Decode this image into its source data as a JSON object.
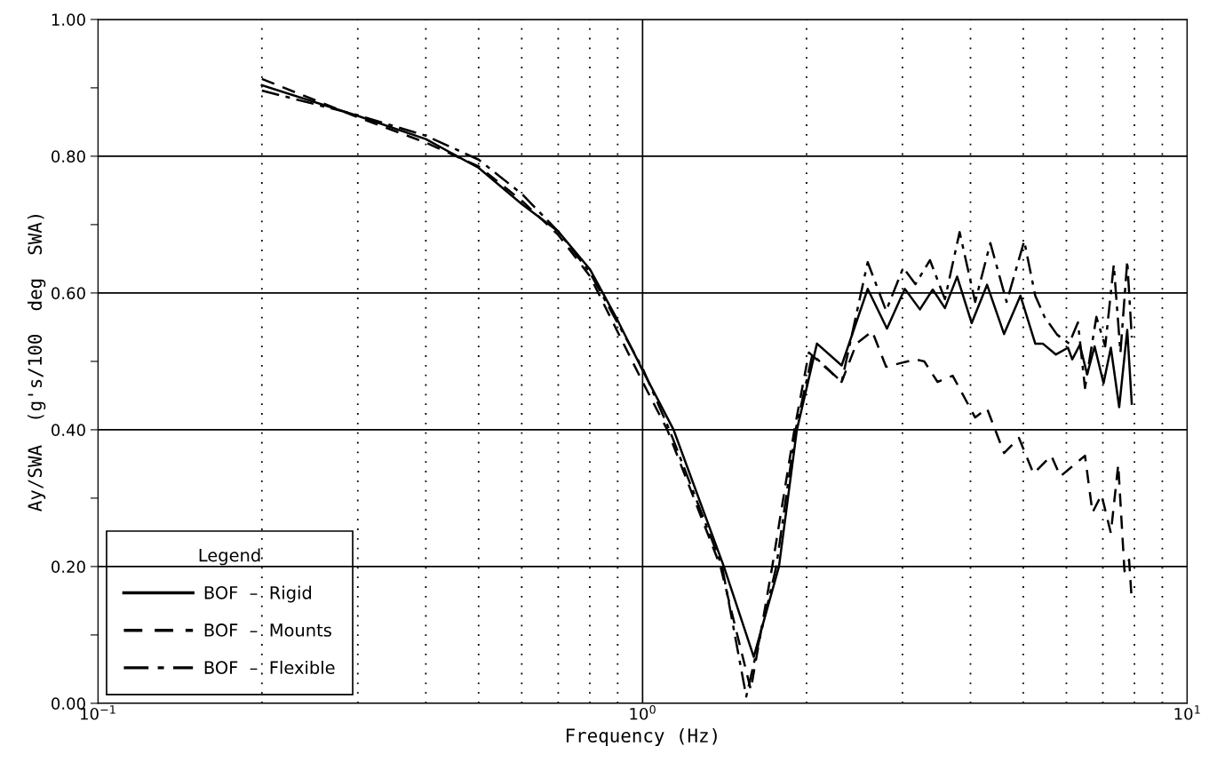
{
  "chart_data": {
    "type": "line",
    "xlabel": "Frequency (Hz)",
    "ylabel": "Ay/SWA  (g's/100  deg  SWA)",
    "log": "x",
    "grid": true,
    "legend": "bottom left",
    "legend_title": "Legend",
    "marker": "none",
    "xlim": [
      0.1,
      10
    ],
    "ylim": [
      0,
      1
    ],
    "xticks": [
      {
        "value": 0.1,
        "label": "10$^{−1}$"
      },
      {
        "value": 0.2,
        "label": null
      },
      {
        "value": 0.3,
        "label": null
      },
      {
        "value": 0.4,
        "label": null
      },
      {
        "value": 0.5,
        "label": null
      },
      {
        "value": 0.6,
        "label": null
      },
      {
        "value": 0.7,
        "label": null
      },
      {
        "value": 0.8,
        "label": null
      },
      {
        "value": 0.9,
        "label": null
      },
      {
        "value": 1,
        "label": "10$^{0}$"
      },
      {
        "value": 2,
        "label": null
      },
      {
        "value": 3,
        "label": null
      },
      {
        "value": 4,
        "label": null
      },
      {
        "value": 5,
        "label": null
      },
      {
        "value": 6,
        "label": null
      },
      {
        "value": 7,
        "label": null
      },
      {
        "value": 8,
        "label": null
      },
      {
        "value": 9,
        "label": null
      },
      {
        "value": 10,
        "label": "10$^{1}$"
      }
    ],
    "yticks": [
      {
        "value": 0,
        "label": "0.00"
      },
      {
        "value": 0.1,
        "label": null
      },
      {
        "value": 0.2,
        "label": "0.20"
      },
      {
        "value": 0.3,
        "label": null
      },
      {
        "value": 0.4,
        "label": "0.40"
      },
      {
        "value": 0.5,
        "label": null
      },
      {
        "value": 0.6,
        "label": "0.60"
      },
      {
        "value": 0.7,
        "label": null
      },
      {
        "value": 0.8,
        "label": "0.80"
      },
      {
        "value": 0.9,
        "label": null
      },
      {
        "value": 1,
        "label": "1.00"
      }
    ],
    "series": [
      {
        "name": "BOF  –  Rigid",
        "color": "#000000",
        "line_style": "solid",
        "x": [
          0.2,
          0.3,
          0.4,
          0.5,
          0.6,
          0.7,
          0.8,
          0.9,
          1.0,
          1.14,
          1.41,
          1.6,
          1.78,
          1.92,
          2.09,
          2.32,
          2.59,
          2.81,
          3.03,
          3.23,
          3.41,
          3.59,
          3.78,
          4.02,
          4.29,
          4.61,
          4.94,
          5.26,
          5.43,
          5.74,
          6.04,
          6.15,
          6.35,
          6.55,
          6.76,
          7.02,
          7.24,
          7.5,
          7.76,
          7.91
        ],
        "values": [
          0.904,
          0.859,
          0.825,
          0.783,
          0.73,
          0.69,
          0.635,
          0.56,
          0.487,
          0.4,
          0.2,
          0.068,
          0.2,
          0.4,
          0.526,
          0.494,
          0.606,
          0.548,
          0.606,
          0.576,
          0.605,
          0.578,
          0.624,
          0.556,
          0.612,
          0.54,
          0.596,
          0.526,
          0.526,
          0.51,
          0.52,
          0.503,
          0.524,
          0.481,
          0.522,
          0.468,
          0.52,
          0.433,
          0.546,
          0.438
        ]
      },
      {
        "name": "BOF  –  Mounts",
        "color": "#000000",
        "line_style": "dashed",
        "x": [
          0.2,
          0.3,
          0.4,
          0.5,
          0.6,
          0.7,
          0.8,
          1.0,
          1.11,
          1.39,
          1.58,
          1.73,
          1.9,
          2.02,
          2.32,
          2.47,
          2.64,
          2.8,
          3.17,
          3.29,
          3.48,
          3.71,
          4.08,
          4.29,
          4.61,
          4.91,
          5.22,
          5.63,
          5.85,
          6.49,
          6.7,
          6.96,
          7.24,
          7.47,
          7.67,
          7.82,
          7.91
        ],
        "values": [
          0.913,
          0.857,
          0.82,
          0.785,
          0.735,
          0.685,
          0.625,
          0.47,
          0.4,
          0.2,
          0.02,
          0.2,
          0.4,
          0.513,
          0.47,
          0.526,
          0.544,
          0.492,
          0.503,
          0.5,
          0.47,
          0.479,
          0.418,
          0.431,
          0.366,
          0.388,
          0.336,
          0.362,
          0.332,
          0.362,
          0.279,
          0.305,
          0.249,
          0.349,
          0.193,
          0.21,
          0.15
        ]
      },
      {
        "name": "BOF  –  Flexible",
        "color": "#000000",
        "line_style": "dashdot",
        "x": [
          0.2,
          0.3,
          0.4,
          0.5,
          0.6,
          0.7,
          0.8,
          1.0,
          1.12,
          1.4,
          1.55,
          1.76,
          1.91,
          2.05,
          2.32,
          2.59,
          2.8,
          3.01,
          3.17,
          3.37,
          3.59,
          3.82,
          4.08,
          4.35,
          4.66,
          5.02,
          5.26,
          5.47,
          5.77,
          6.07,
          6.3,
          6.49,
          6.81,
          7.07,
          7.33,
          7.54,
          7.76,
          7.91
        ],
        "values": [
          0.896,
          0.86,
          0.83,
          0.795,
          0.745,
          0.69,
          0.63,
          0.49,
          0.4,
          0.2,
          0.01,
          0.2,
          0.4,
          0.51,
          0.47,
          0.645,
          0.574,
          0.637,
          0.613,
          0.648,
          0.591,
          0.689,
          0.587,
          0.673,
          0.587,
          0.676,
          0.596,
          0.565,
          0.539,
          0.526,
          0.557,
          0.461,
          0.565,
          0.522,
          0.641,
          0.513,
          0.647,
          0.535
        ]
      }
    ]
  }
}
